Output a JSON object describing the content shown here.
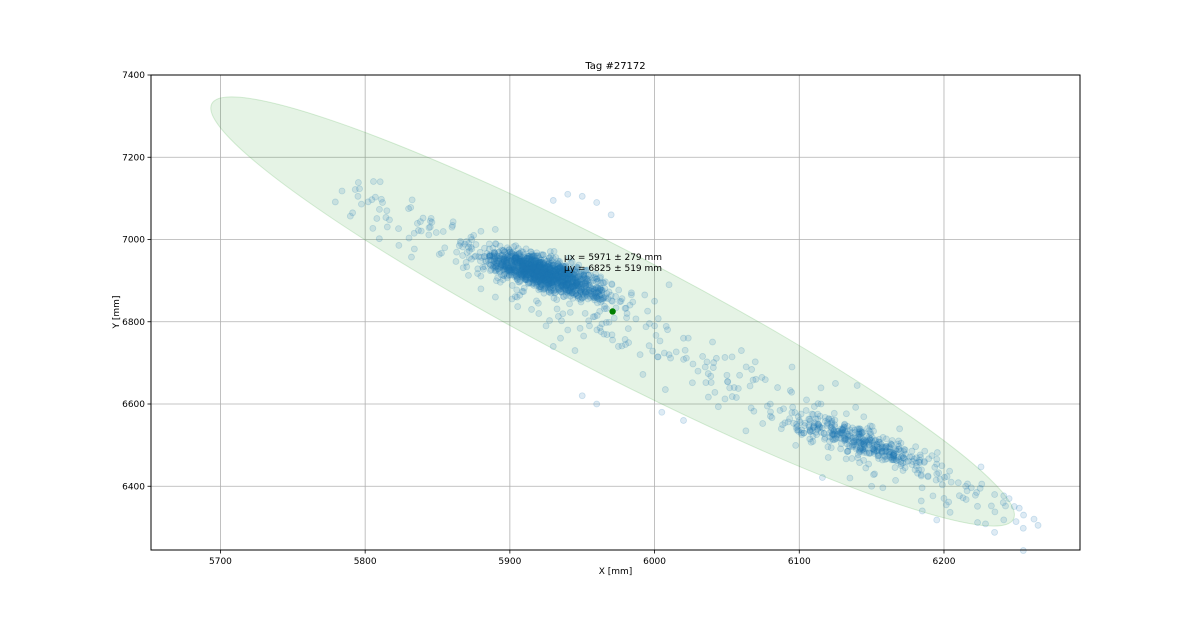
{
  "chart_data": {
    "type": "scatter",
    "title": "Tag #27172",
    "xlabel": "X [mm]",
    "ylabel": "Y [mm]",
    "xlim": [
      5652,
      6294
    ],
    "ylim": [
      6245,
      7400
    ],
    "xticks": [
      5700,
      5800,
      5900,
      6000,
      6100,
      6200
    ],
    "yticks": [
      6400,
      6600,
      6800,
      7000,
      7200,
      7400
    ],
    "grid": true,
    "annotation": {
      "mu_x": "μx = 5971 ± 279 mm",
      "mu_y": "μy = 6825 ± 519 mm"
    },
    "mean": {
      "x": 5971,
      "y": 6825,
      "color": "#008000"
    },
    "ellipse": {
      "center": [
        5971,
        6825
      ],
      "major_axis_end_a": [
        5694,
        7330
      ],
      "major_axis_end_b": [
        6248,
        6320
      ],
      "minor_semi_axis_mm": 42,
      "fill": "#2ca02c",
      "fill_opacity": 0.12
    },
    "point_color": "#1f77b4",
    "point_alpha": 0.15,
    "clusters": [
      {
        "cx": 5920,
        "cy": 6925,
        "sx": 18,
        "sy": 30,
        "n": 1100
      },
      {
        "cx": 5935,
        "cy": 6895,
        "sx": 22,
        "sy": 25,
        "n": 350
      },
      {
        "cx": 6135,
        "cy": 6520,
        "sx": 22,
        "sy": 30,
        "n": 250
      },
      {
        "cx": 6160,
        "cy": 6480,
        "sx": 15,
        "sy": 15,
        "n": 80
      }
    ],
    "trail_points": [
      [
        5784,
        7118
      ],
      [
        5795,
        7105
      ],
      [
        5812,
        7090
      ],
      [
        5830,
        7075
      ],
      [
        5845,
        7045
      ],
      [
        5860,
        7030
      ],
      [
        5875,
        7010
      ],
      [
        5880,
        7020
      ],
      [
        5890,
        6990
      ],
      [
        5900,
        6970
      ],
      [
        5905,
        6860
      ],
      [
        5915,
        6830
      ],
      [
        5925,
        6790
      ],
      [
        5935,
        6760
      ],
      [
        5945,
        6730
      ],
      [
        5955,
        6790
      ],
      [
        5965,
        6770
      ],
      [
        5975,
        6740
      ],
      [
        5990,
        6720
      ],
      [
        6000,
        6790
      ],
      [
        6010,
        6720
      ],
      [
        6020,
        6760
      ],
      [
        6035,
        6690
      ],
      [
        6050,
        6670
      ],
      [
        6060,
        6730
      ],
      [
        6070,
        6660
      ],
      [
        6085,
        6640
      ],
      [
        6095,
        6690
      ],
      [
        6105,
        6610
      ],
      [
        6115,
        6600
      ],
      [
        6125,
        6650
      ],
      [
        6140,
        6645
      ],
      [
        6170,
        6460
      ],
      [
        6180,
        6440
      ],
      [
        6195,
        6430
      ],
      [
        6205,
        6410
      ],
      [
        6215,
        6400
      ],
      [
        6225,
        6395
      ],
      [
        6235,
        6380
      ],
      [
        6245,
        6370
      ],
      [
        6255,
        6330
      ],
      [
        6265,
        6305
      ],
      [
        6195,
        6318
      ],
      [
        6185,
        6340
      ],
      [
        5950,
        7105
      ],
      [
        5940,
        7110
      ],
      [
        5930,
        7095
      ],
      [
        5960,
        7090
      ],
      [
        5970,
        7060
      ],
      [
        6000,
        6850
      ],
      [
        6010,
        6890
      ],
      [
        5880,
        6880
      ],
      [
        5890,
        6860
      ],
      [
        5950,
        6620
      ],
      [
        5960,
        6600
      ],
      [
        6030,
        6680
      ],
      [
        6055,
        6640
      ],
      [
        6080,
        6600
      ],
      [
        6100,
        6560
      ],
      [
        6120,
        6470
      ],
      [
        6135,
        6420
      ],
      [
        6150,
        6400
      ],
      [
        5855,
        6980
      ],
      [
        5870,
        6995
      ],
      [
        5815,
        7070
      ],
      [
        5940,
        6780
      ],
      [
        5930,
        6740
      ],
      [
        5920,
        6820
      ],
      [
        6005,
        6580
      ],
      [
        6020,
        6560
      ]
    ]
  }
}
